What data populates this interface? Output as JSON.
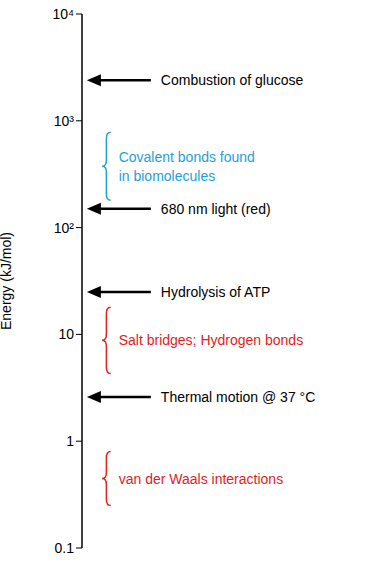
{
  "chart_data": {
    "type": "scale",
    "ylabel": "Energy (kJ/mol)",
    "log": "y",
    "ylim": [
      0.1,
      10000
    ],
    "yticks": [
      0.1,
      1,
      10,
      {
        "value": 100,
        "label": "10²"
      },
      {
        "value": 1000,
        "label": "10³"
      },
      {
        "value": 10000,
        "label": "10⁴"
      }
    ],
    "arrows": [
      {
        "label": "Combustion of glucose",
        "value": 2400
      },
      {
        "label": "680 nm light (red)",
        "value": 150
      },
      {
        "label": "Hydrolysis of ATP",
        "value": 25
      },
      {
        "label": "Thermal motion @ 37 °C",
        "value": 2.6
      }
    ],
    "ranges": [
      {
        "lines": [
          "Covalent bonds found",
          "in biomolecules"
        ],
        "range": [
          180,
          780
        ],
        "color": "#1ea0d8"
      },
      {
        "lines": [
          "Salt bridges; Hydrogen bonds"
        ],
        "range": [
          4.3,
          18
        ],
        "color": "#e0221f"
      },
      {
        "lines": [
          "van der Waals interactions"
        ],
        "range": [
          0.25,
          0.8
        ],
        "color": "#e0221f"
      }
    ]
  }
}
